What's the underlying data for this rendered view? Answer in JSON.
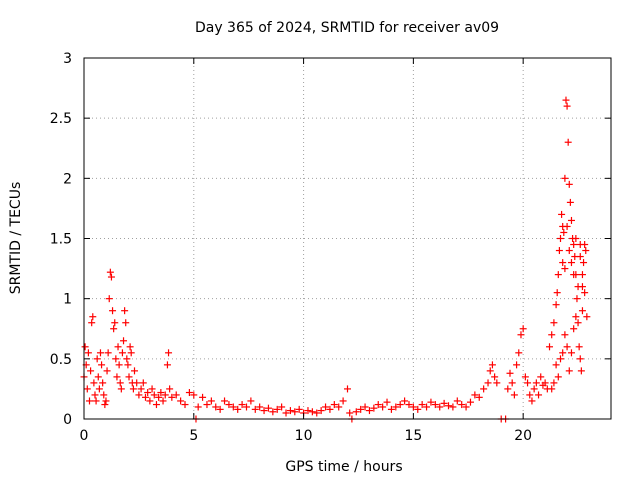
{
  "chart_data": {
    "type": "scatter",
    "title": "Day 365 of 2024, SRMTID for receiver av09",
    "xlabel": "GPS time / hours",
    "ylabel": "SRMTID / TECUs",
    "xlim": [
      0,
      24
    ],
    "ylim": [
      0,
      3
    ],
    "x_ticks": [
      0,
      5,
      10,
      15,
      20
    ],
    "y_ticks": [
      0,
      0.5,
      1,
      1.5,
      2,
      2.5,
      3
    ],
    "x_tick_labels": [
      "0",
      "5",
      "10",
      "15",
      "20"
    ],
    "y_tick_labels": [
      "0",
      "0.5",
      "1",
      "1.5",
      "2",
      "2.5",
      "3"
    ],
    "grid": true,
    "marker": "+",
    "color": "#ff0000",
    "series": [
      {
        "name": "av09",
        "points": [
          [
            0.0,
            0.35
          ],
          [
            0.05,
            0.6
          ],
          [
            0.1,
            0.45
          ],
          [
            0.15,
            0.25
          ],
          [
            0.2,
            0.55
          ],
          [
            0.25,
            0.15
          ],
          [
            0.3,
            0.4
          ],
          [
            0.35,
            0.8
          ],
          [
            0.4,
            0.85
          ],
          [
            0.45,
            0.3
          ],
          [
            0.5,
            0.2
          ],
          [
            0.55,
            0.15
          ],
          [
            0.6,
            0.5
          ],
          [
            0.65,
            0.35
          ],
          [
            0.7,
            0.25
          ],
          [
            0.75,
            0.55
          ],
          [
            0.8,
            0.45
          ],
          [
            0.85,
            0.3
          ],
          [
            0.9,
            0.2
          ],
          [
            0.95,
            0.12
          ],
          [
            1.0,
            0.15
          ],
          [
            1.05,
            0.4
          ],
          [
            1.1,
            0.55
          ],
          [
            1.15,
            1.0
          ],
          [
            1.2,
            1.22
          ],
          [
            1.25,
            1.18
          ],
          [
            1.3,
            0.9
          ],
          [
            1.35,
            0.75
          ],
          [
            1.4,
            0.8
          ],
          [
            1.45,
            0.5
          ],
          [
            1.5,
            0.35
          ],
          [
            1.55,
            0.6
          ],
          [
            1.6,
            0.45
          ],
          [
            1.65,
            0.3
          ],
          [
            1.7,
            0.25
          ],
          [
            1.75,
            0.55
          ],
          [
            1.8,
            0.65
          ],
          [
            1.85,
            0.9
          ],
          [
            1.9,
            0.8
          ],
          [
            1.95,
            0.5
          ],
          [
            2.0,
            0.45
          ],
          [
            2.05,
            0.35
          ],
          [
            2.1,
            0.6
          ],
          [
            2.15,
            0.55
          ],
          [
            2.2,
            0.3
          ],
          [
            2.25,
            0.25
          ],
          [
            2.3,
            0.4
          ],
          [
            2.4,
            0.3
          ],
          [
            2.5,
            0.2
          ],
          [
            2.6,
            0.25
          ],
          [
            2.7,
            0.3
          ],
          [
            2.8,
            0.18
          ],
          [
            2.9,
            0.22
          ],
          [
            3.0,
            0.15
          ],
          [
            3.1,
            0.25
          ],
          [
            3.2,
            0.2
          ],
          [
            3.3,
            0.12
          ],
          [
            3.4,
            0.18
          ],
          [
            3.5,
            0.22
          ],
          [
            3.6,
            0.15
          ],
          [
            3.7,
            0.2
          ],
          [
            3.8,
            0.45
          ],
          [
            3.85,
            0.55
          ],
          [
            3.9,
            0.25
          ],
          [
            4.0,
            0.18
          ],
          [
            4.2,
            0.2
          ],
          [
            4.4,
            0.15
          ],
          [
            4.6,
            0.12
          ],
          [
            4.8,
            0.22
          ],
          [
            5.0,
            0.2
          ],
          [
            5.1,
            0.0
          ],
          [
            5.2,
            0.1
          ],
          [
            5.4,
            0.18
          ],
          [
            5.6,
            0.12
          ],
          [
            5.8,
            0.15
          ],
          [
            6.0,
            0.1
          ],
          [
            6.2,
            0.08
          ],
          [
            6.4,
            0.15
          ],
          [
            6.6,
            0.12
          ],
          [
            6.8,
            0.1
          ],
          [
            7.0,
            0.08
          ],
          [
            7.2,
            0.12
          ],
          [
            7.4,
            0.1
          ],
          [
            7.6,
            0.15
          ],
          [
            7.8,
            0.08
          ],
          [
            8.0,
            0.1
          ],
          [
            8.2,
            0.07
          ],
          [
            8.4,
            0.09
          ],
          [
            8.6,
            0.06
          ],
          [
            8.8,
            0.08
          ],
          [
            9.0,
            0.1
          ],
          [
            9.2,
            0.05
          ],
          [
            9.4,
            0.07
          ],
          [
            9.6,
            0.06
          ],
          [
            9.8,
            0.08
          ],
          [
            10.0,
            0.05
          ],
          [
            10.2,
            0.07
          ],
          [
            10.4,
            0.06
          ],
          [
            10.6,
            0.05
          ],
          [
            10.8,
            0.07
          ],
          [
            11.0,
            0.1
          ],
          [
            11.2,
            0.08
          ],
          [
            11.4,
            0.12
          ],
          [
            11.6,
            0.1
          ],
          [
            11.8,
            0.15
          ],
          [
            12.0,
            0.25
          ],
          [
            12.1,
            0.05
          ],
          [
            12.2,
            0.0
          ],
          [
            12.4,
            0.06
          ],
          [
            12.6,
            0.08
          ],
          [
            12.8,
            0.1
          ],
          [
            13.0,
            0.07
          ],
          [
            13.2,
            0.09
          ],
          [
            13.4,
            0.12
          ],
          [
            13.6,
            0.1
          ],
          [
            13.8,
            0.14
          ],
          [
            14.0,
            0.08
          ],
          [
            14.2,
            0.1
          ],
          [
            14.4,
            0.12
          ],
          [
            14.6,
            0.15
          ],
          [
            14.8,
            0.12
          ],
          [
            15.0,
            0.1
          ],
          [
            15.2,
            0.08
          ],
          [
            15.4,
            0.12
          ],
          [
            15.6,
            0.1
          ],
          [
            15.8,
            0.14
          ],
          [
            16.0,
            0.12
          ],
          [
            16.2,
            0.1
          ],
          [
            16.4,
            0.13
          ],
          [
            16.6,
            0.11
          ],
          [
            16.8,
            0.1
          ],
          [
            17.0,
            0.15
          ],
          [
            17.2,
            0.12
          ],
          [
            17.4,
            0.1
          ],
          [
            17.6,
            0.14
          ],
          [
            17.8,
            0.2
          ],
          [
            18.0,
            0.18
          ],
          [
            18.2,
            0.25
          ],
          [
            18.4,
            0.3
          ],
          [
            18.5,
            0.4
          ],
          [
            18.6,
            0.45
          ],
          [
            18.7,
            0.35
          ],
          [
            18.8,
            0.3
          ],
          [
            19.0,
            0.0
          ],
          [
            19.2,
            0.0
          ],
          [
            19.3,
            0.25
          ],
          [
            19.4,
            0.38
          ],
          [
            19.5,
            0.3
          ],
          [
            19.6,
            0.2
          ],
          [
            19.7,
            0.45
          ],
          [
            19.8,
            0.55
          ],
          [
            19.9,
            0.7
          ],
          [
            20.0,
            0.75
          ],
          [
            20.1,
            0.35
          ],
          [
            20.2,
            0.3
          ],
          [
            20.3,
            0.2
          ],
          [
            20.4,
            0.15
          ],
          [
            20.5,
            0.25
          ],
          [
            20.6,
            0.3
          ],
          [
            20.7,
            0.2
          ],
          [
            20.8,
            0.35
          ],
          [
            20.9,
            0.28
          ],
          [
            21.0,
            0.3
          ],
          [
            21.1,
            0.25
          ],
          [
            21.2,
            0.6
          ],
          [
            21.3,
            0.7
          ],
          [
            21.4,
            0.8
          ],
          [
            21.5,
            0.95
          ],
          [
            21.55,
            1.05
          ],
          [
            21.6,
            1.2
          ],
          [
            21.65,
            1.4
          ],
          [
            21.7,
            1.5
          ],
          [
            21.75,
            1.7
          ],
          [
            21.8,
            1.6
          ],
          [
            21.85,
            1.55
          ],
          [
            21.9,
            2.0
          ],
          [
            21.95,
            2.65
          ],
          [
            22.0,
            2.6
          ],
          [
            22.05,
            2.3
          ],
          [
            22.1,
            1.95
          ],
          [
            22.15,
            1.8
          ],
          [
            22.2,
            1.65
          ],
          [
            22.25,
            1.5
          ],
          [
            22.3,
            1.45
          ],
          [
            22.35,
            1.35
          ],
          [
            22.4,
            1.2
          ],
          [
            22.45,
            1.0
          ],
          [
            22.5,
            0.8
          ],
          [
            22.55,
            0.6
          ],
          [
            22.6,
            0.5
          ],
          [
            22.65,
            0.4
          ],
          [
            22.7,
            0.9
          ],
          [
            22.75,
            1.3
          ],
          [
            22.8,
            1.45
          ],
          [
            22.85,
            1.4
          ],
          [
            22.9,
            0.85
          ],
          [
            21.5,
            0.45
          ],
          [
            21.6,
            0.35
          ],
          [
            21.7,
            0.5
          ],
          [
            21.8,
            0.55
          ],
          [
            21.9,
            0.7
          ],
          [
            22.0,
            0.6
          ],
          [
            22.1,
            0.4
          ],
          [
            22.2,
            0.55
          ],
          [
            22.3,
            0.75
          ],
          [
            22.4,
            0.85
          ],
          [
            22.5,
            1.1
          ],
          [
            22.6,
            1.35
          ],
          [
            22.7,
            1.2
          ],
          [
            22.8,
            1.05
          ],
          [
            21.4,
            0.3
          ],
          [
            21.3,
            0.25
          ],
          [
            22.2,
            1.3
          ],
          [
            22.3,
            1.2
          ],
          [
            22.4,
            1.5
          ],
          [
            22.6,
            1.45
          ],
          [
            22.7,
            1.1
          ],
          [
            22.1,
            1.4
          ],
          [
            22.0,
            1.6
          ],
          [
            21.9,
            1.25
          ],
          [
            21.8,
            1.3
          ]
        ]
      }
    ]
  }
}
